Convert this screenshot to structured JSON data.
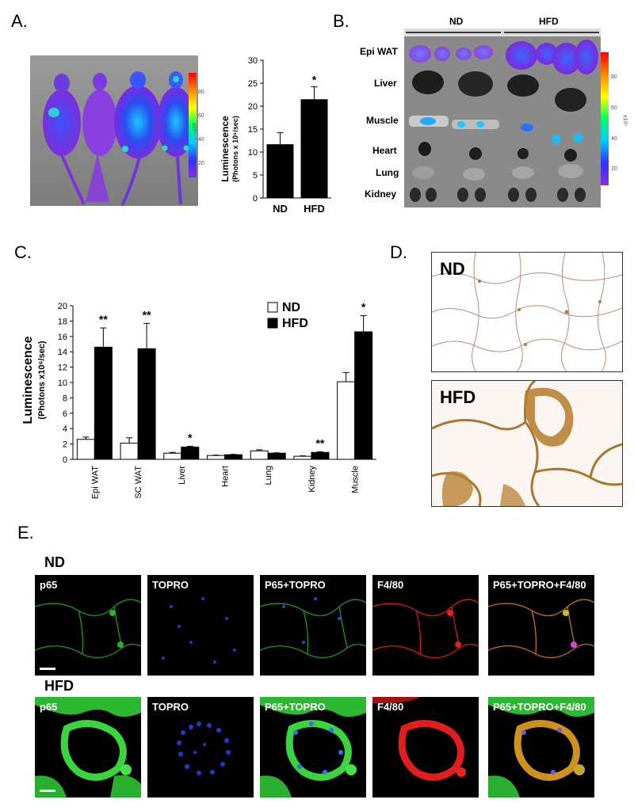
{
  "panel_labels": {
    "a": "A.",
    "b": "B.",
    "c": "C.",
    "d": "D.",
    "e": "E."
  },
  "panel_a": {
    "colorbar_ticks": [
      "80",
      "60",
      "40",
      "20"
    ],
    "colorbar_unit": "x10⁶"
  },
  "panel_b": {
    "groups": [
      "ND",
      "HFD"
    ],
    "tissues": [
      "Epi WAT",
      "Liver",
      "Muscle",
      "Heart",
      "Lung",
      "Kidney"
    ],
    "colorbar_ticks": [
      "80",
      "60",
      "40",
      "20"
    ],
    "colorbar_unit": "x10⁶"
  },
  "panel_d": {
    "top_label": "ND",
    "bottom_label": "HFD"
  },
  "panel_e": {
    "row_labels": [
      "ND",
      "HFD"
    ],
    "channels": [
      "p65",
      "TOPRO",
      "P65+TOPRO",
      "F4/80",
      "P65+TOPRO+F4/80"
    ]
  },
  "chart_data": [
    {
      "id": "A",
      "type": "bar",
      "categories": [
        "ND",
        "HFD"
      ],
      "values": [
        11.7,
        21.5
      ],
      "errors": [
        2.5,
        2.7
      ],
      "significance": [
        "",
        "*"
      ],
      "ylabel": "Luminescence",
      "ylabel2": "(Photons x 10⁶/sec)",
      "ylim": [
        0,
        30
      ],
      "yticks": [
        0,
        5,
        10,
        15,
        20,
        25,
        30
      ],
      "bar_color": "#000000"
    },
    {
      "id": "C",
      "type": "bar",
      "categories": [
        "Epi WAT",
        "SC WAT",
        "Liver",
        "Heart",
        "Lung",
        "Kidney",
        "Muscle"
      ],
      "series": [
        {
          "name": "ND",
          "values": [
            2.6,
            2.1,
            0.8,
            0.5,
            1.1,
            0.4,
            10.1
          ],
          "errors": [
            0.3,
            0.7,
            0.1,
            0.05,
            0.15,
            0.05,
            1.2
          ],
          "color": "#ffffff"
        },
        {
          "name": "HFD",
          "values": [
            14.6,
            14.4,
            1.6,
            0.6,
            0.8,
            0.9,
            16.6
          ],
          "errors": [
            2.5,
            3.3,
            0.1,
            0.05,
            0.05,
            0.08,
            2.1
          ],
          "color": "#000000"
        }
      ],
      "significance": [
        "**",
        "**",
        "*",
        "",
        "",
        "**",
        "*"
      ],
      "ylabel": "Luminescence",
      "ylabel2": "(Photons x10⁶/sec)",
      "ylim": [
        0,
        20
      ],
      "yticks": [
        0,
        2,
        4,
        6,
        8,
        10,
        12,
        14,
        16,
        18,
        20
      ],
      "legend_position": "top-right"
    }
  ]
}
